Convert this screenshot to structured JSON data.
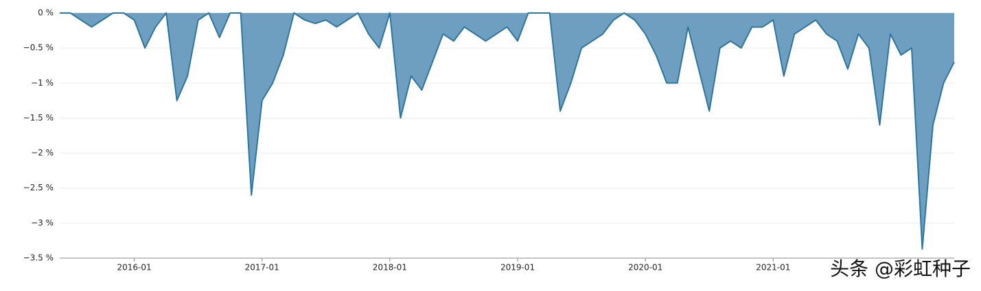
{
  "chart_data": {
    "type": "area",
    "x": [
      "2015-06",
      "2015-07",
      "2015-08",
      "2015-09",
      "2015-10",
      "2015-11",
      "2015-12",
      "2016-01",
      "2016-02",
      "2016-03",
      "2016-04",
      "2016-05",
      "2016-06",
      "2016-07",
      "2016-08",
      "2016-09",
      "2016-10",
      "2016-11",
      "2016-12",
      "2017-01",
      "2017-02",
      "2017-03",
      "2017-04",
      "2017-05",
      "2017-06",
      "2017-07",
      "2017-08",
      "2017-09",
      "2017-10",
      "2017-11",
      "2017-12",
      "2018-01",
      "2018-02",
      "2018-03",
      "2018-04",
      "2018-05",
      "2018-06",
      "2018-07",
      "2018-08",
      "2018-09",
      "2018-10",
      "2018-11",
      "2018-12",
      "2019-01",
      "2019-02",
      "2019-03",
      "2019-04",
      "2019-05",
      "2019-06",
      "2019-07",
      "2019-08",
      "2019-09",
      "2019-10",
      "2019-11",
      "2019-12",
      "2020-01",
      "2020-02",
      "2020-03",
      "2020-04",
      "2020-05",
      "2020-06",
      "2020-07",
      "2020-08",
      "2020-09",
      "2020-10",
      "2020-11",
      "2020-12",
      "2021-01",
      "2021-02",
      "2021-03",
      "2021-04",
      "2021-05",
      "2021-06",
      "2021-07",
      "2021-08",
      "2021-09",
      "2021-10",
      "2021-11",
      "2021-12",
      "2022-01",
      "2022-02",
      "2022-03",
      "2022-04",
      "2022-05",
      "2022-06"
    ],
    "series": [
      {
        "color": "#2a76a0",
        "fill": "#6f9fc0",
        "values": [
          0,
          0,
          -0.1,
          -0.2,
          -0.1,
          0,
          0,
          -0.1,
          -0.5,
          -0.2,
          0,
          -1.25,
          -0.9,
          -0.1,
          0,
          -0.35,
          0,
          0,
          -2.6,
          -1.25,
          -1.0,
          -0.6,
          0,
          -0.1,
          -0.15,
          -0.1,
          -0.2,
          -0.1,
          0,
          -0.3,
          -0.5,
          0,
          -1.5,
          -0.9,
          -1.1,
          -0.7,
          -0.3,
          -0.4,
          -0.2,
          -0.3,
          -0.4,
          -0.3,
          -0.2,
          -0.4,
          0,
          0,
          0,
          -1.4,
          -1.0,
          -0.5,
          -0.4,
          -0.3,
          -0.1,
          0,
          -0.1,
          -0.3,
          -0.6,
          -1.0,
          -1.0,
          -0.2,
          -0.8,
          -1.4,
          -0.5,
          -0.4,
          -0.5,
          -0.2,
          -0.2,
          -0.1,
          -0.9,
          -0.3,
          -0.2,
          -0.1,
          -0.3,
          -0.4,
          -0.8,
          -0.3,
          -0.5,
          -1.6,
          -0.3,
          -0.6,
          -0.5,
          -3.37,
          -1.6,
          -1.0,
          -0.7
        ]
      }
    ],
    "xlim": [
      "2015-06",
      "2022-06"
    ],
    "xticks": [
      "2016-01",
      "2017-01",
      "2018-01",
      "2019-01",
      "2020-01",
      "2021-01"
    ],
    "ylim": [
      -3.5,
      0
    ],
    "yticks": [
      {
        "value": 0,
        "label": "0 %"
      },
      {
        "value": -0.5,
        "label": "−0.5 %"
      },
      {
        "value": -1,
        "label": "−1 %"
      },
      {
        "value": -1.5,
        "label": "−1.5 %"
      },
      {
        "value": -2,
        "label": "−2 %"
      },
      {
        "value": -2.5,
        "label": "−2.5 %"
      },
      {
        "value": -3,
        "label": "−3 %"
      },
      {
        "value": -3.5,
        "label": "−3.5 %"
      }
    ],
    "grid": true,
    "watermark": "头条 @彩虹种子"
  }
}
